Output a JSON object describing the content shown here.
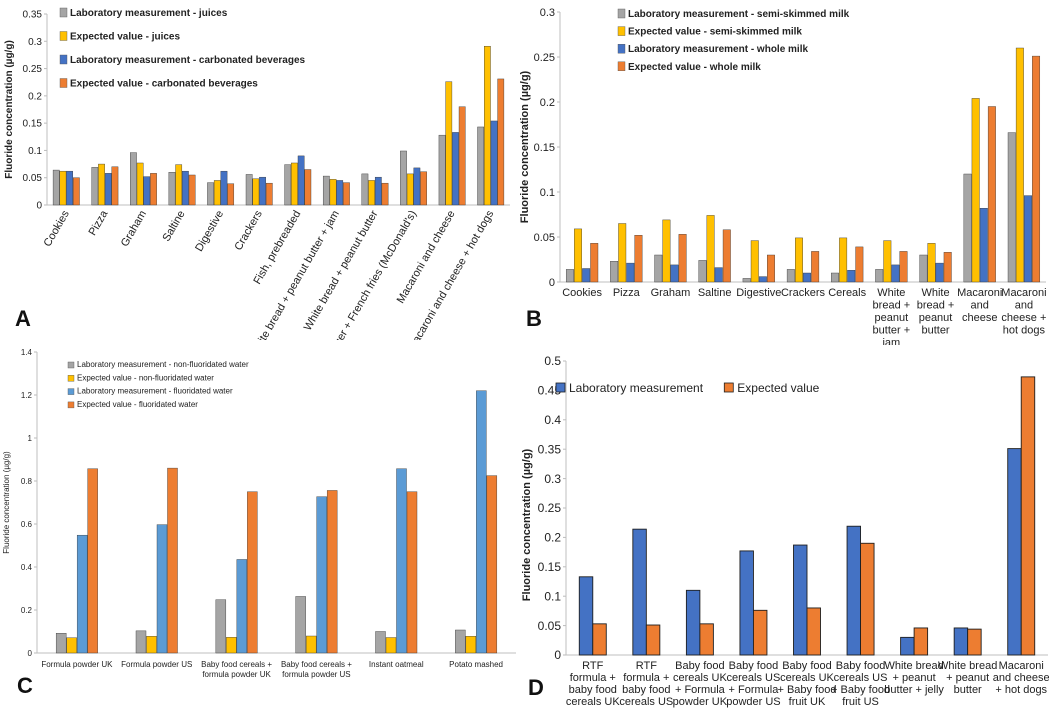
{
  "colors": {
    "gray": "#a5a5a5",
    "yellow": "#ffc000",
    "blue": "#4472c4",
    "orange": "#ed7d31",
    "lightblue": "#5b9bd5"
  },
  "chart_data": [
    {
      "panel": "A",
      "type": "bar",
      "ylabel": "Fluoride concentration (µg/g)",
      "ylim": [
        0,
        0.35
      ],
      "yticks": [
        "0",
        "0.05",
        "0.1",
        "0.15",
        "0.2",
        "0.25",
        "0.3",
        "0.35"
      ],
      "categories": [
        "Cookies",
        "Pizza",
        "Graham",
        "Saltine",
        "Digestive",
        "Crackers",
        "Fish, prebreaded",
        "White bread + peanut butter + jam",
        "White bread + peanut butter",
        "Hamburger + French fries (McDonald's)",
        "Macaroni and cheese",
        "Macaroni and cheese + hot dogs"
      ],
      "series": [
        {
          "name": "Laboratory measurement - juices",
          "color": "gray",
          "values": [
            0.064,
            0.069,
            0.096,
            0.06,
            0.041,
            0.056,
            0.074,
            0.053,
            0.057,
            0.099,
            0.128,
            0.143
          ]
        },
        {
          "name": "Expected value - juices",
          "color": "yellow",
          "values": [
            0.062,
            0.075,
            0.077,
            0.074,
            0.045,
            0.048,
            0.077,
            0.047,
            0.045,
            0.057,
            0.226,
            0.291
          ]
        },
        {
          "name": "Laboratory measurement - carbonated beverages",
          "color": "blue",
          "values": [
            0.062,
            0.058,
            0.052,
            0.062,
            0.062,
            0.051,
            0.09,
            0.045,
            0.051,
            0.068,
            0.133,
            0.154
          ]
        },
        {
          "name": "Expected value - carbonated beverages",
          "color": "orange",
          "values": [
            0.05,
            0.07,
            0.058,
            0.055,
            0.039,
            0.04,
            0.065,
            0.041,
            0.04,
            0.061,
            0.18,
            0.231
          ]
        }
      ]
    },
    {
      "panel": "B",
      "type": "bar",
      "ylabel": "Fluoride concentration (µg/g)",
      "ylim": [
        0,
        0.3
      ],
      "yticks": [
        "0",
        "0.05",
        "0.1",
        "0.15",
        "0.2",
        "0.25",
        "0.3"
      ],
      "categories": [
        "Cookies",
        "Pizza",
        "Graham",
        "Saltine",
        "Digestive",
        "Crackers",
        "Cereals",
        "White bread + peanut butter + jam",
        "White bread + peanut butter",
        "Macaroni and cheese",
        "Macaroni and cheese + hot dogs"
      ],
      "category_lines": [
        [
          "Cookies"
        ],
        [
          "Pizza"
        ],
        [
          "Graham"
        ],
        [
          "Saltine"
        ],
        [
          "Digestive"
        ],
        [
          "Crackers"
        ],
        [
          "Cereals"
        ],
        [
          "White",
          "bread +",
          "peanut",
          "butter +",
          "jam"
        ],
        [
          "White",
          "bread +",
          "peanut",
          "butter"
        ],
        [
          "Macaroni",
          "and",
          "cheese"
        ],
        [
          "Macaroni",
          "and",
          "cheese +",
          "hot dogs"
        ]
      ],
      "series": [
        {
          "name": "Laboratory measurement - semi-skimmed milk",
          "color": "gray",
          "values": [
            0.014,
            0.023,
            0.03,
            0.024,
            0.004,
            0.014,
            0.01,
            0.014,
            0.03,
            0.12,
            0.166
          ]
        },
        {
          "name": "Expected value - semi-skimmed milk",
          "color": "yellow",
          "values": [
            0.059,
            0.065,
            0.069,
            0.074,
            0.046,
            0.049,
            0.049,
            0.046,
            0.043,
            0.204,
            0.26
          ]
        },
        {
          "name": "Laboratory measurement - whole milk",
          "color": "blue",
          "values": [
            0.015,
            0.021,
            0.019,
            0.016,
            0.006,
            0.01,
            0.013,
            0.019,
            0.021,
            0.082,
            0.096
          ]
        },
        {
          "name": "Expected value - whole milk",
          "color": "orange",
          "values": [
            0.043,
            0.052,
            0.053,
            0.058,
            0.03,
            0.034,
            0.039,
            0.034,
            0.033,
            0.195,
            0.251
          ]
        }
      ]
    },
    {
      "panel": "C",
      "type": "bar",
      "ylabel": "Fluoride concentration (µg/g)",
      "ylim": [
        0,
        1.4
      ],
      "yticks": [
        "0",
        "0.2",
        "0.4",
        "0.6",
        "0.8",
        "1",
        "1.2",
        "1.4"
      ],
      "categories": [
        "Formula powder UK",
        "Formula powder US",
        "Baby food cereals + formula powder UK",
        "Baby food cereals + formula powder US",
        "Instant oatmeal",
        "Potato mashed"
      ],
      "category_lines": [
        [
          "Formula powder UK"
        ],
        [
          "Formula powder US"
        ],
        [
          "Baby food cereals +",
          "formula powder UK"
        ],
        [
          "Baby food cereals +",
          "formula powder US"
        ],
        [
          "Instant oatmeal"
        ],
        [
          "Potato mashed"
        ]
      ],
      "series": [
        {
          "name": "Laboratory measurement - non-fluoridated water",
          "color": "gray",
          "values": [
            0.092,
            0.103,
            0.248,
            0.263,
            0.1,
            0.107
          ]
        },
        {
          "name": "Expected value - non-fluoridated water",
          "color": "yellow",
          "values": [
            0.071,
            0.078,
            0.073,
            0.079,
            0.072,
            0.078
          ]
        },
        {
          "name": "Laboratory measurement - fluoridated water",
          "color": "lightblue",
          "values": [
            0.548,
            0.597,
            0.435,
            0.727,
            0.857,
            1.22
          ]
        },
        {
          "name": "Expected value - fluoridated water",
          "color": "orange",
          "values": [
            0.857,
            0.86,
            0.75,
            0.756,
            0.75,
            0.825
          ]
        }
      ]
    },
    {
      "panel": "D",
      "type": "bar",
      "ylabel": "Fluoride concentration (µg/g)",
      "ylim": [
        0,
        0.5
      ],
      "yticks": [
        "0",
        "0.05",
        "0.1",
        "0.15",
        "0.2",
        "0.25",
        "0.3",
        "0.35",
        "0.4",
        "0.45",
        "0.5"
      ],
      "categories": [
        "RTF formula + baby food cereals UK",
        "RTF formula + baby food cereals US",
        "Baby food cereals UK + Formula powder UK",
        "Baby food cereals US + Formula powder US",
        "Baby food cereals UK + Baby food fruit UK",
        "Baby food cereals US + Baby food fruit US",
        "White bread + peanut butter + jelly",
        "White bread + peanut butter",
        "Macaroni and cheese + hot dogs"
      ],
      "category_lines": [
        [
          "RTF",
          "formula +",
          "baby food",
          "cereals UK"
        ],
        [
          "RTF",
          "formula +",
          "baby food",
          "cereals US"
        ],
        [
          "Baby food",
          "cereals UK",
          "+ Formula",
          "powder UK"
        ],
        [
          "Baby food",
          "cereals US",
          "+ Formula",
          "powder US"
        ],
        [
          "Baby food",
          "cereals UK",
          "+ Baby food",
          "fruit UK"
        ],
        [
          "Baby food",
          "cereals US",
          "+ Baby food",
          "fruit US"
        ],
        [
          "White bread",
          "+ peanut",
          "butter + jelly"
        ],
        [
          "White bread",
          "+ peanut",
          "butter"
        ],
        [
          "Macaroni",
          "and cheese",
          "+ hot dogs"
        ]
      ],
      "series": [
        {
          "name": "Laboratory measurement",
          "color": "blue",
          "values": [
            0.133,
            0.214,
            0.11,
            0.177,
            0.187,
            0.219,
            0.03,
            0.046,
            0.351
          ]
        },
        {
          "name": "Expected value",
          "color": "orange",
          "values": [
            0.053,
            0.051,
            0.053,
            0.076,
            0.08,
            0.19,
            0.046,
            0.044,
            0.473
          ]
        }
      ]
    }
  ],
  "panel_labels": {
    "A": "A",
    "B": "B",
    "C": "C",
    "D": "D"
  }
}
